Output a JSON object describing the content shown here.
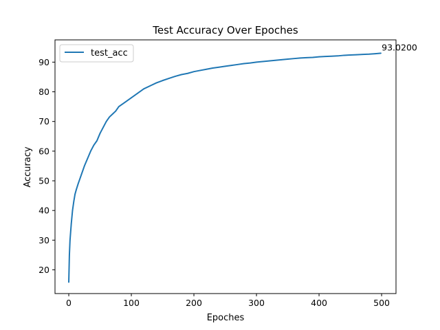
{
  "chart_data": {
    "type": "line",
    "title": "Test Accuracy Over Epoches",
    "xlabel": "Epoches",
    "ylabel": "Accuracy",
    "xlim": [
      -22,
      523
    ],
    "ylim": [
      12,
      97.5
    ],
    "xticks": [
      0,
      100,
      200,
      300,
      400,
      500
    ],
    "yticks": [
      20,
      30,
      40,
      50,
      60,
      70,
      80,
      90
    ],
    "grid": false,
    "legend_position": "top-left",
    "series": [
      {
        "name": "test_acc",
        "color": "#1f77b4",
        "x": [
          0,
          1,
          2,
          4,
          6,
          8,
          10,
          12,
          15,
          18,
          20,
          25,
          30,
          35,
          40,
          45,
          50,
          55,
          60,
          65,
          70,
          75,
          80,
          90,
          100,
          110,
          120,
          130,
          140,
          150,
          160,
          170,
          180,
          190,
          200,
          210,
          220,
          230,
          240,
          250,
          260,
          270,
          280,
          290,
          300,
          310,
          320,
          330,
          340,
          350,
          360,
          370,
          380,
          390,
          400,
          410,
          420,
          430,
          440,
          450,
          460,
          470,
          480,
          490,
          499
        ],
        "y": [
          15.8,
          25.0,
          30.0,
          35.5,
          40.0,
          43.0,
          45.5,
          47.0,
          49.0,
          50.8,
          52.0,
          55.0,
          57.5,
          60.0,
          62.0,
          63.5,
          66.0,
          68.0,
          70.0,
          71.5,
          72.5,
          73.5,
          75.0,
          76.5,
          78.0,
          79.5,
          81.0,
          82.0,
          83.0,
          83.8,
          84.5,
          85.2,
          85.8,
          86.2,
          86.8,
          87.2,
          87.6,
          88.0,
          88.3,
          88.6,
          88.9,
          89.2,
          89.5,
          89.7,
          90.0,
          90.2,
          90.4,
          90.6,
          90.8,
          91.0,
          91.2,
          91.4,
          91.5,
          91.6,
          91.8,
          91.9,
          92.0,
          92.1,
          92.3,
          92.4,
          92.5,
          92.6,
          92.7,
          92.85,
          93.02
        ]
      }
    ],
    "annotations": [
      {
        "text": "93.0200",
        "x": 499,
        "y": 93.02
      }
    ]
  }
}
